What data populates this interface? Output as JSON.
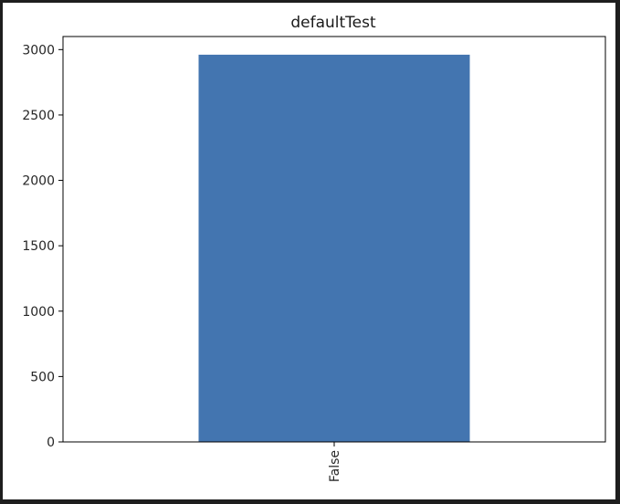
{
  "chart_data": {
    "type": "bar",
    "title": "defaultTest",
    "xlabel": "",
    "ylabel": "",
    "categories": [
      "False"
    ],
    "values": [
      2961
    ],
    "ylim": [
      0,
      3100
    ],
    "yticks": [
      0,
      500,
      1000,
      1500,
      2000,
      2500,
      3000
    ],
    "ytick_labels": [
      "0",
      "500",
      "1000",
      "1500",
      "2000",
      "2500",
      "3000"
    ],
    "bar_color": "#4375b0",
    "grid": false,
    "legend": "none",
    "xtick_rotation": "vertical"
  }
}
